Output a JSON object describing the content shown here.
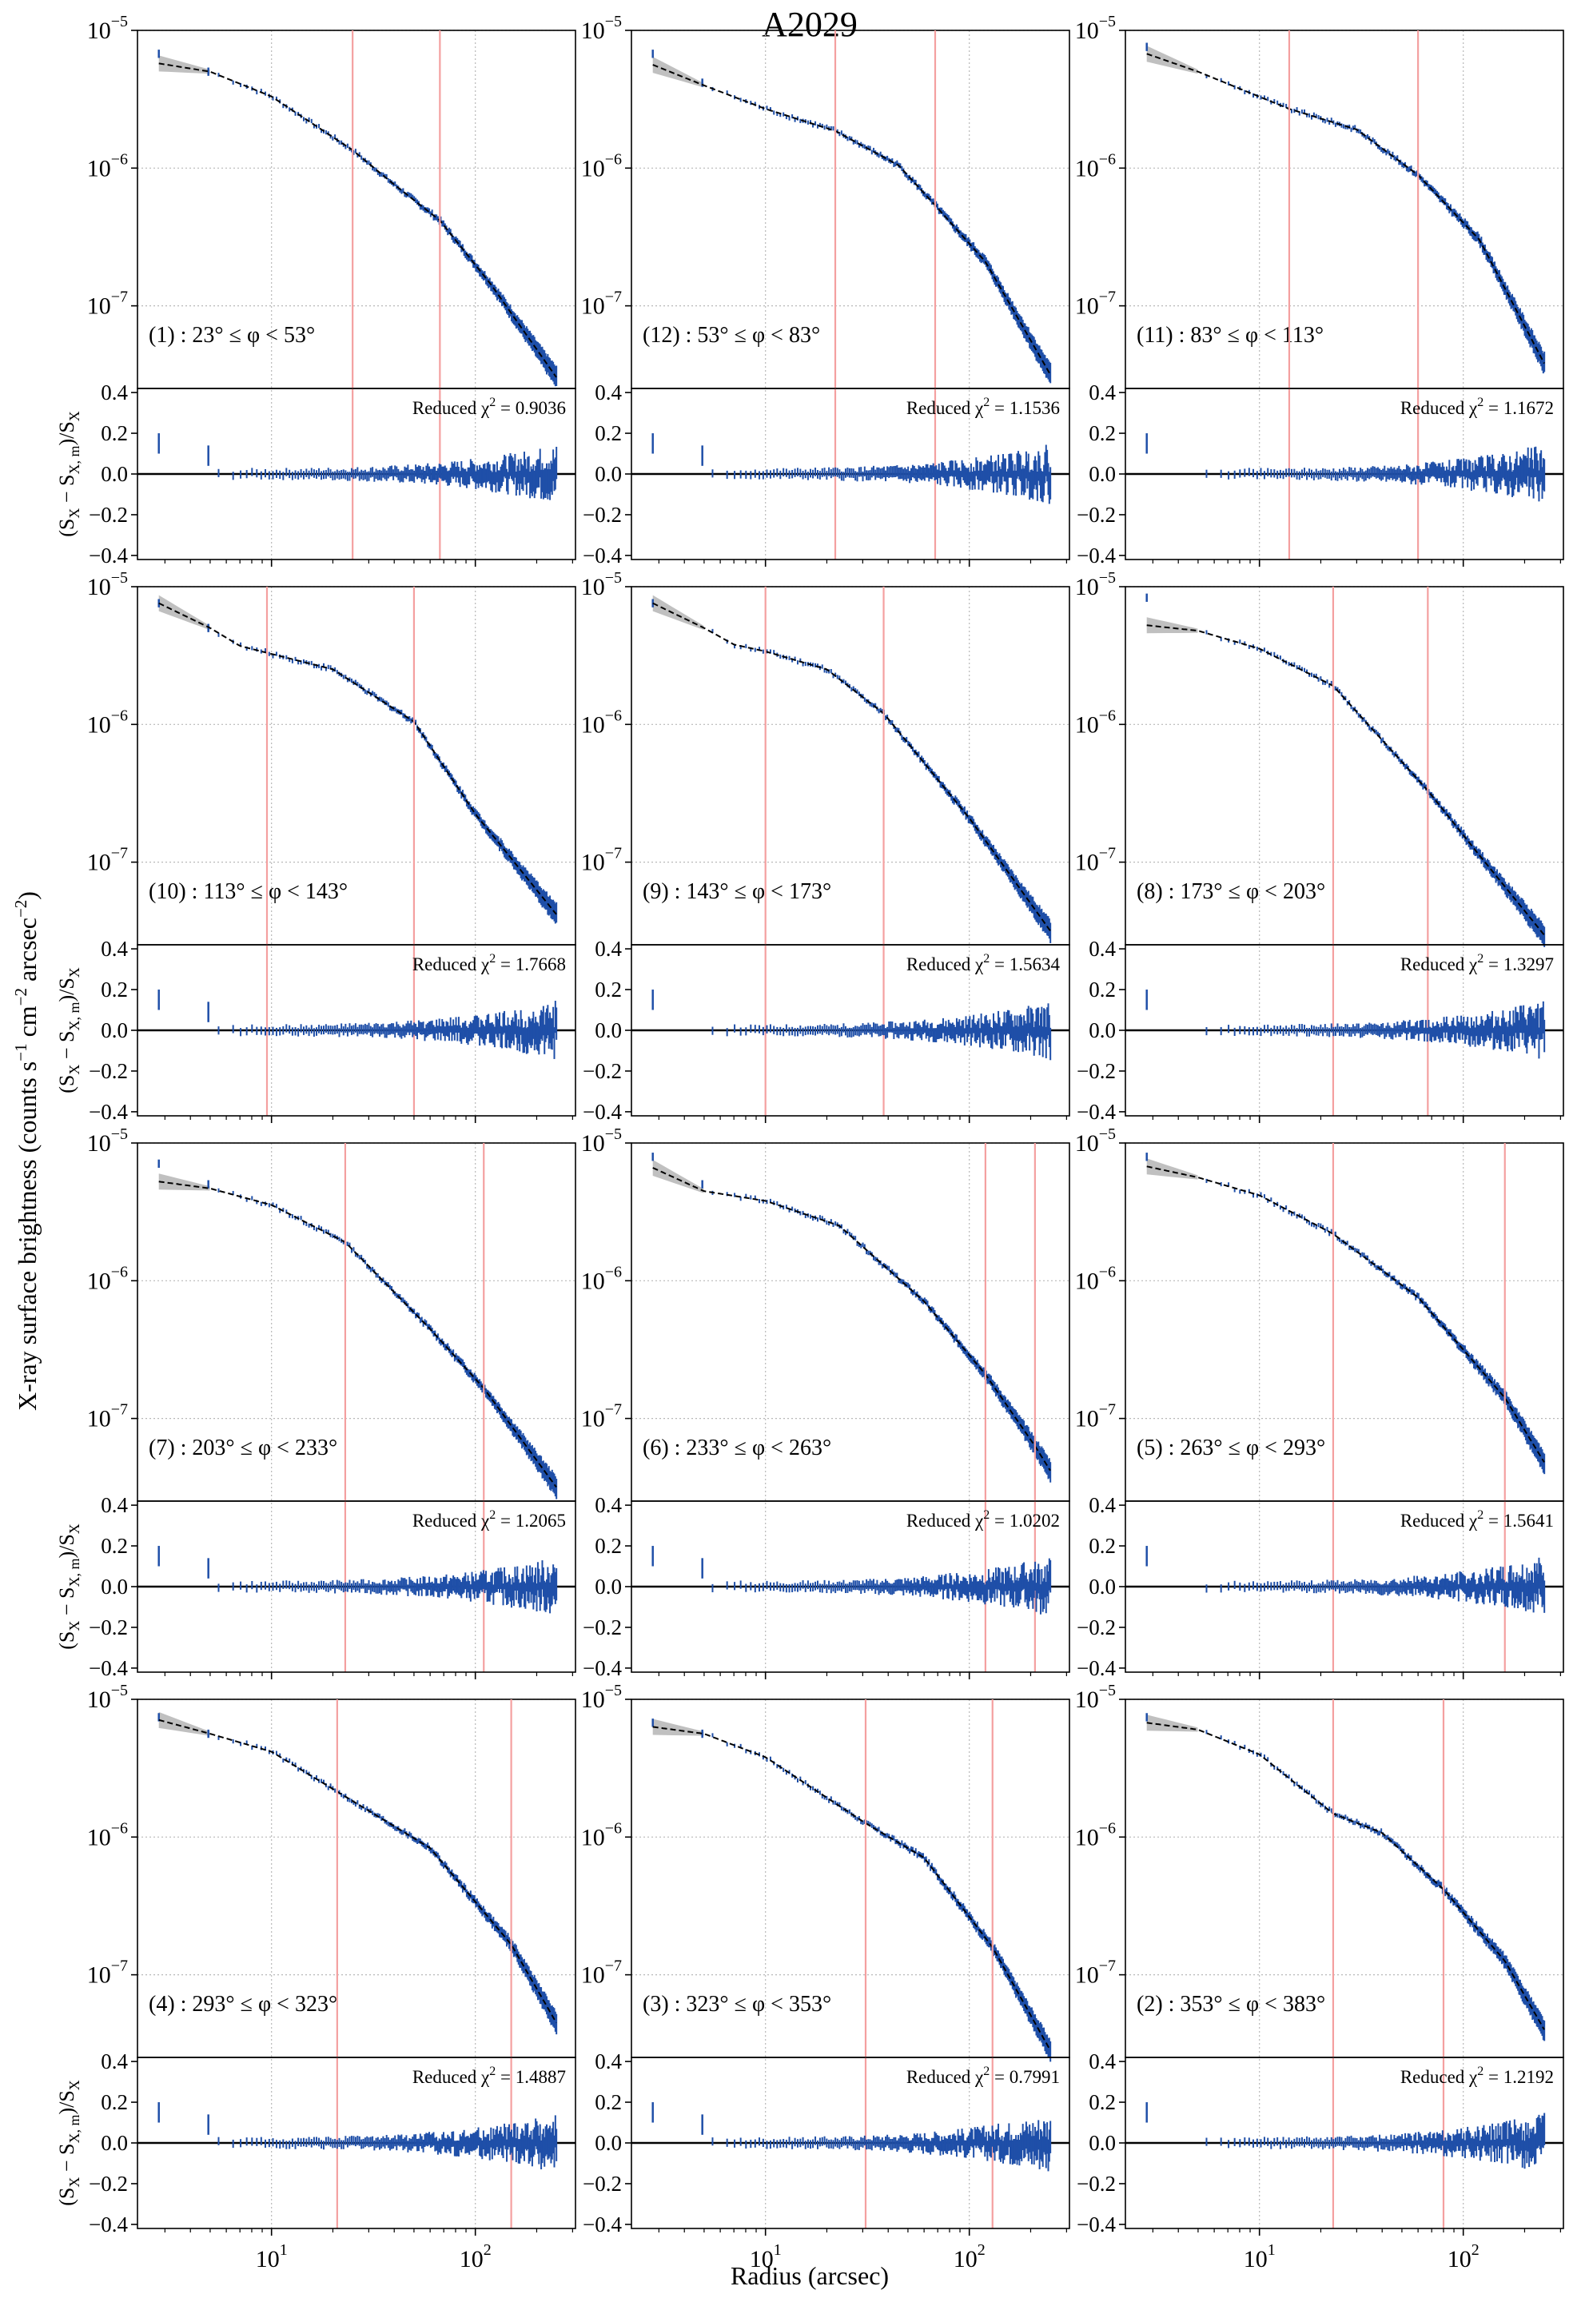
{
  "figure": {
    "title": "A2029",
    "xlabel": "Radius (arcsec)",
    "ylabel_main": "X-ray surface brightness (counts s",
    "ylabel_main_sup1": "−1",
    "ylabel_main_mid": " cm",
    "ylabel_main_sup2": "−2",
    "ylabel_main_end": " arcsec",
    "ylabel_main_sup3": "−2",
    "ylabel_main_close": ")",
    "residual_ylabel": "(S",
    "residual_ylabel_sub1": "X",
    "residual_ylabel_mid": " − S",
    "residual_ylabel_sub2": "X, m",
    "residual_ylabel_end": ")/S",
    "residual_ylabel_sub3": "X",
    "chi_prefix": "Reduced χ",
    "chi_sup": "2",
    "chi_eq": " = "
  },
  "colors": {
    "data": "#1f4fa8",
    "model": "#000000",
    "band": "#b0b0b0",
    "edge": "#f4a0a0",
    "grid": "#b8b8b8",
    "zero": "#000000"
  },
  "chart_data": {
    "type": "scatter",
    "title": "A2029",
    "xlabel": "Radius (arcsec)",
    "ylabel": "X-ray surface brightness (counts s^-1 cm^-2 arcsec^-2)",
    "residual_ylabel": "(S_X − S_X,m)/S_X",
    "xscale": "log",
    "xlim": [
      2.2,
      310
    ],
    "ylim_log10": [
      -7.6,
      -5.0
    ],
    "residual_ylim": [
      -0.42,
      0.42
    ],
    "x_ticks": [
      {
        "value": 10,
        "label": "10",
        "sup": "1"
      },
      {
        "value": 100,
        "label": "10",
        "sup": "2"
      }
    ],
    "y_ticks": [
      {
        "value": -5,
        "label": "10",
        "sup": "−5"
      },
      {
        "value": -6,
        "label": "10",
        "sup": "−6"
      },
      {
        "value": -7,
        "label": "10",
        "sup": "−7"
      }
    ],
    "residual_ticks": [
      "0.4",
      "0.2",
      "0.0",
      "−0.2",
      "−0.4"
    ],
    "residual_tick_values": [
      0.4,
      0.2,
      0.0,
      -0.2,
      -0.4
    ],
    "panels": [
      {
        "id": "1",
        "label": "(1) : 23° ≤ φ < 53°",
        "chi2": "0.9036",
        "edges": [
          25,
          67
        ],
        "profile": [
          [
            2.8,
            -5.24
          ],
          [
            5,
            -5.3
          ],
          [
            10,
            -5.48
          ],
          [
            25,
            -5.87
          ],
          [
            40,
            -6.12
          ],
          [
            67,
            -6.38
          ],
          [
            120,
            -6.85
          ],
          [
            250,
            -7.52
          ]
        ],
        "first_points": [
          [
            2.8,
            -5.17
          ],
          [
            4.9,
            -5.3
          ]
        ]
      },
      {
        "id": "12",
        "label": "(12) : 53° ≤ φ < 83°",
        "chi2": "1.1536",
        "edges": [
          22,
          68
        ],
        "profile": [
          [
            2.8,
            -5.25
          ],
          [
            5,
            -5.4
          ],
          [
            10,
            -5.57
          ],
          [
            22,
            -5.73
          ],
          [
            45,
            -5.98
          ],
          [
            68,
            -6.27
          ],
          [
            120,
            -6.68
          ],
          [
            250,
            -7.5
          ]
        ],
        "first_points": [
          [
            2.8,
            -5.17
          ],
          [
            4.9,
            -5.38
          ]
        ]
      },
      {
        "id": "11",
        "label": "(11) : 83° ≤ φ < 113°",
        "chi2": "1.1672",
        "edges": [
          14,
          60
        ],
        "profile": [
          [
            2.8,
            -5.17
          ],
          [
            5,
            -5.3
          ],
          [
            14,
            -5.57
          ],
          [
            30,
            -5.72
          ],
          [
            60,
            -6.05
          ],
          [
            120,
            -6.52
          ],
          [
            250,
            -7.42
          ]
        ],
        "first_points": [
          [
            2.8,
            -5.12
          ]
        ]
      },
      {
        "id": "10",
        "label": "(10) : 113° ≤ φ < 143°",
        "chi2": "1.7668",
        "edges": [
          9.5,
          50
        ],
        "profile": [
          [
            2.8,
            -5.12
          ],
          [
            5,
            -5.3
          ],
          [
            7,
            -5.43
          ],
          [
            9.5,
            -5.48
          ],
          [
            20,
            -5.6
          ],
          [
            50,
            -5.98
          ],
          [
            100,
            -6.65
          ],
          [
            250,
            -7.38
          ]
        ],
        "first_points": [
          [
            2.8,
            -5.12
          ],
          [
            4.9,
            -5.3
          ]
        ]
      },
      {
        "id": "9",
        "label": "(9) : 143° ≤ φ < 173°",
        "chi2": "1.5634",
        "edges": [
          10,
          38
        ],
        "profile": [
          [
            2.8,
            -5.12
          ],
          [
            5,
            -5.3
          ],
          [
            7,
            -5.42
          ],
          [
            10,
            -5.47
          ],
          [
            20,
            -5.6
          ],
          [
            38,
            -5.92
          ],
          [
            100,
            -6.68
          ],
          [
            250,
            -7.5
          ]
        ],
        "first_points": [
          [
            2.8,
            -5.12
          ]
        ]
      },
      {
        "id": "8",
        "label": "(8) : 173° ≤ φ < 203°",
        "chi2": "1.3297",
        "edges": [
          23,
          67
        ],
        "profile": [
          [
            2.8,
            -5.28
          ],
          [
            5,
            -5.32
          ],
          [
            10,
            -5.45
          ],
          [
            23,
            -5.72
          ],
          [
            67,
            -6.48
          ],
          [
            120,
            -6.95
          ],
          [
            250,
            -7.53
          ]
        ],
        "first_points": [
          [
            2.8,
            -5.08
          ]
        ]
      },
      {
        "id": "7",
        "label": "(7) : 203° ≤ φ < 233°",
        "chi2": "1.2065",
        "edges": [
          23,
          110
        ],
        "profile": [
          [
            2.8,
            -5.28
          ],
          [
            5,
            -5.33
          ],
          [
            10,
            -5.45
          ],
          [
            23,
            -5.72
          ],
          [
            60,
            -6.35
          ],
          [
            110,
            -6.78
          ],
          [
            250,
            -7.5
          ]
        ],
        "first_points": [
          [
            2.8,
            -5.15
          ],
          [
            4.9,
            -5.3
          ]
        ]
      },
      {
        "id": "6",
        "label": "(6) : 233° ≤ φ < 263°",
        "chi2": "1.0202",
        "edges": [
          120,
          210
        ],
        "profile": [
          [
            2.8,
            -5.18
          ],
          [
            5,
            -5.35
          ],
          [
            10,
            -5.42
          ],
          [
            23,
            -5.6
          ],
          [
            60,
            -6.15
          ],
          [
            120,
            -6.68
          ],
          [
            210,
            -7.2
          ],
          [
            250,
            -7.38
          ]
        ],
        "first_points": [
          [
            2.8,
            -5.1
          ],
          [
            4.9,
            -5.3
          ]
        ]
      },
      {
        "id": "5",
        "label": "(5) : 263° ≤ φ < 293°",
        "chi2": "1.5641",
        "edges": [
          23,
          160
        ],
        "profile": [
          [
            2.8,
            -5.17
          ],
          [
            5,
            -5.25
          ],
          [
            10,
            -5.38
          ],
          [
            23,
            -5.66
          ],
          [
            60,
            -6.12
          ],
          [
            160,
            -6.85
          ],
          [
            250,
            -7.32
          ]
        ],
        "first_points": [
          [
            2.8,
            -5.1
          ]
        ]
      },
      {
        "id": "4",
        "label": "(4) : 293° ≤ φ < 323°",
        "chi2": "1.4887",
        "edges": [
          21,
          150
        ],
        "profile": [
          [
            2.8,
            -5.15
          ],
          [
            5,
            -5.25
          ],
          [
            10,
            -5.38
          ],
          [
            21,
            -5.67
          ],
          [
            60,
            -6.08
          ],
          [
            150,
            -6.78
          ],
          [
            250,
            -7.35
          ]
        ],
        "first_points": [
          [
            2.8,
            -5.13
          ],
          [
            4.9,
            -5.25
          ]
        ]
      },
      {
        "id": "3",
        "label": "(3) : 323° ≤ φ < 353°",
        "chi2": "0.7991",
        "edges": [
          31,
          130
        ],
        "profile": [
          [
            2.8,
            -5.2
          ],
          [
            5,
            -5.25
          ],
          [
            10,
            -5.42
          ],
          [
            31,
            -5.9
          ],
          [
            60,
            -6.15
          ],
          [
            130,
            -6.8
          ],
          [
            250,
            -7.55
          ]
        ],
        "first_points": [
          [
            2.8,
            -5.17
          ],
          [
            4.9,
            -5.25
          ]
        ]
      },
      {
        "id": "2",
        "label": "(2) : 353° ≤ φ < 383°",
        "chi2": "1.2192",
        "edges": [
          23,
          80
        ],
        "profile": [
          [
            2.8,
            -5.17
          ],
          [
            5,
            -5.22
          ],
          [
            10,
            -5.4
          ],
          [
            23,
            -5.83
          ],
          [
            40,
            -5.97
          ],
          [
            80,
            -6.38
          ],
          [
            160,
            -6.9
          ],
          [
            250,
            -7.4
          ]
        ],
        "first_points": [
          [
            2.8,
            -5.13
          ]
        ]
      }
    ]
  }
}
